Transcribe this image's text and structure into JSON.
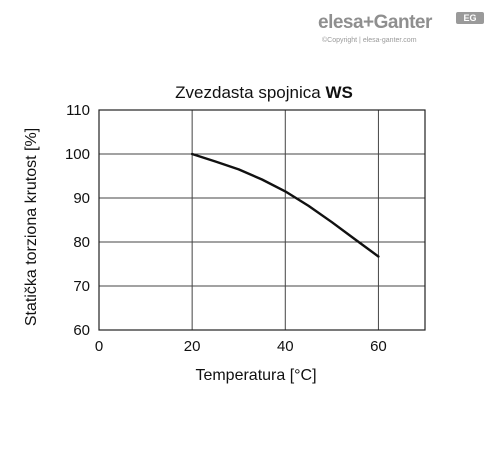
{
  "brand": {
    "name": "elesa+Ganter",
    "badge": "EG",
    "copyright": "©Copyright | elesa-ganter.com"
  },
  "chart_data": {
    "type": "line",
    "title": "Zvezdasta spojnica",
    "title_bold": "WS",
    "xlabel": "Temperatura [°C]",
    "ylabel": "Statička torziona krutost [%]",
    "xlim": [
      0,
      70
    ],
    "ylim": [
      60,
      110
    ],
    "xticks": [
      0,
      20,
      40,
      60
    ],
    "yticks": [
      60,
      70,
      80,
      90,
      100,
      110
    ],
    "grid": true,
    "series": [
      {
        "x": [
          20,
          25,
          30,
          35,
          40,
          45,
          50,
          55,
          60
        ],
        "y": [
          100,
          98.3,
          96.5,
          94.2,
          91.5,
          88.2,
          84.5,
          80.6,
          76.7
        ]
      }
    ]
  }
}
